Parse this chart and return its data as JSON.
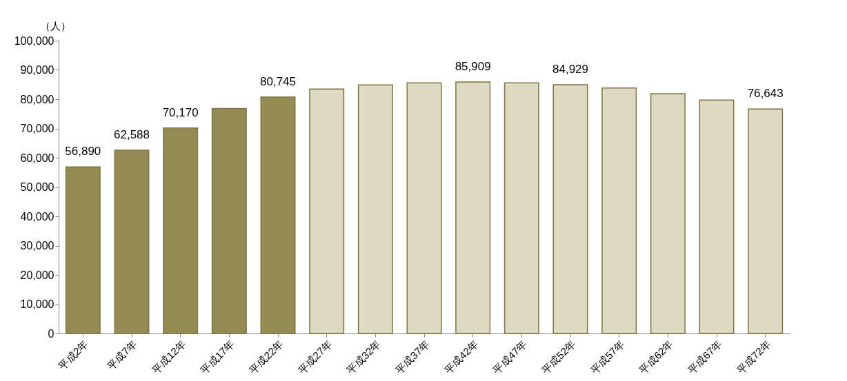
{
  "chart_data": {
    "type": "bar",
    "ylabel": "（人）",
    "categories": [
      "平成2年",
      "平成7年",
      "平成12年",
      "平成17年",
      "平成22年",
      "平成27年",
      "平成32年",
      "平成37年",
      "平成42年",
      "平成47年",
      "平成52年",
      "平成57年",
      "平成62年",
      "平成67年",
      "平成72年"
    ],
    "values": [
      56890,
      62588,
      70170,
      76800,
      80745,
      83500,
      84900,
      85600,
      85909,
      85600,
      84929,
      83800,
      81900,
      79700,
      76643
    ],
    "colors": [
      "#948a54",
      "#948a54",
      "#948a54",
      "#948a54",
      "#948a54",
      "#ddd9c3",
      "#ddd9c3",
      "#ddd9c3",
      "#ddd9c3",
      "#ddd9c3",
      "#ddd9c3",
      "#ddd9c3",
      "#ddd9c3",
      "#ddd9c3",
      "#ddd9c3"
    ],
    "value_labels": [
      "56,890",
      "62,588",
      "70,170",
      null,
      "80,745",
      null,
      null,
      null,
      "85,909",
      null,
      "84,929",
      null,
      null,
      null,
      "76,643"
    ],
    "ylim": [
      0,
      100000
    ],
    "yticks": [
      0,
      {
        "value": 10000,
        "label": "10,000"
      },
      {
        "value": 20000,
        "label": "20,000"
      },
      {
        "value": 30000,
        "label": "30,000"
      },
      {
        "value": 40000,
        "label": "40,000"
      },
      {
        "value": 50000,
        "label": "50,000"
      },
      {
        "value": 60000,
        "label": "60,000"
      },
      {
        "value": 70000,
        "label": "70,000"
      },
      {
        "value": 80000,
        "label": "80,000"
      },
      {
        "value": 90000,
        "label": "90,000"
      },
      {
        "value": 100000,
        "label": "100,000"
      }
    ],
    "grid": false
  }
}
